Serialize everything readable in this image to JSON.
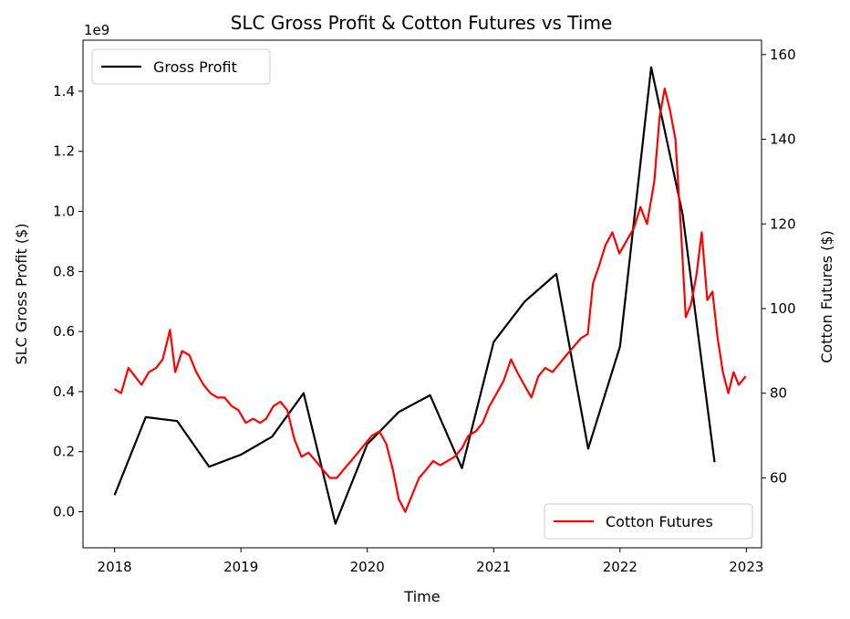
{
  "chart_data": {
    "type": "line",
    "title": "SLC Gross Profit & Cotton Futures vs Time",
    "xlabel": "Time",
    "ylabel_left": "SLC Gross Profit ($)",
    "ylabel_right": "Cotton Futures ($)",
    "left_offset_text": "1e9",
    "x_ticks": [
      "2018",
      "2019",
      "2020",
      "2021",
      "2022",
      "2023"
    ],
    "x_range": [
      2017.75,
      2023.12
    ],
    "left_ylim": [
      -0.12,
      1.57
    ],
    "left_y_ticks": [
      "0.0",
      "0.2",
      "0.4",
      "0.6",
      "0.8",
      "1.0",
      "1.2",
      "1.4"
    ],
    "right_ylim": [
      43.5,
      163.4
    ],
    "right_y_ticks": [
      "60",
      "80",
      "100",
      "120",
      "140",
      "160"
    ],
    "colors": {
      "gross_profit": "#000000",
      "cotton_futures": "#ff0000"
    },
    "legends": [
      {
        "label": "Gross Profit",
        "color": "#000000",
        "placement": "upper left"
      },
      {
        "label": "Cotton Futures",
        "color": "#ff0000",
        "placement": "lower right"
      }
    ],
    "series": [
      {
        "name": "Gross Profit",
        "axis": "left",
        "unit": "1e9",
        "x": [
          "2018-01-01",
          "2018-04-01",
          "2018-07-01",
          "2018-10-01",
          "2019-01-01",
          "2019-04-01",
          "2019-07-01",
          "2019-10-01",
          "2020-01-01",
          "2020-04-01",
          "2020-07-01",
          "2020-10-01",
          "2021-01-01",
          "2021-04-01",
          "2021-07-01",
          "2021-10-01",
          "2022-01-01",
          "2022-04-01",
          "2022-07-01",
          "2022-10-01"
        ],
        "values": [
          0.055,
          0.315,
          0.302,
          0.15,
          0.19,
          0.25,
          0.395,
          -0.04,
          0.225,
          0.332,
          0.388,
          0.145,
          0.565,
          0.7,
          0.792,
          0.21,
          0.55,
          1.48,
          0.99,
          0.165
        ]
      },
      {
        "name": "Cotton Futures",
        "axis": "right",
        "x": [
          "2018-01-01",
          "2018-01-20",
          "2018-02-10",
          "2018-03-01",
          "2018-03-20",
          "2018-04-10",
          "2018-05-01",
          "2018-05-20",
          "2018-06-10",
          "2018-06-25",
          "2018-07-15",
          "2018-08-05",
          "2018-08-25",
          "2018-09-15",
          "2018-10-05",
          "2018-10-25",
          "2018-11-15",
          "2018-12-05",
          "2018-12-25",
          "2019-01-15",
          "2019-02-05",
          "2019-02-25",
          "2019-03-15",
          "2019-04-05",
          "2019-04-25",
          "2019-05-15",
          "2019-06-05",
          "2019-06-25",
          "2019-07-15",
          "2019-08-05",
          "2019-08-25",
          "2019-09-15",
          "2019-10-05",
          "2019-10-25",
          "2019-11-15",
          "2019-12-05",
          "2019-12-25",
          "2020-01-15",
          "2020-02-05",
          "2020-02-25",
          "2020-03-15",
          "2020-04-01",
          "2020-04-20",
          "2020-05-10",
          "2020-05-30",
          "2020-06-20",
          "2020-07-10",
          "2020-07-30",
          "2020-08-20",
          "2020-09-10",
          "2020-10-01",
          "2020-10-20",
          "2020-11-10",
          "2020-11-30",
          "2020-12-20",
          "2021-01-10",
          "2021-01-30",
          "2021-02-20",
          "2021-03-10",
          "2021-03-30",
          "2021-04-20",
          "2021-05-10",
          "2021-05-30",
          "2021-06-20",
          "2021-07-10",
          "2021-07-30",
          "2021-08-20",
          "2021-09-10",
          "2021-09-30",
          "2021-10-15",
          "2021-11-01",
          "2021-11-20",
          "2021-12-10",
          "2021-12-30",
          "2022-01-20",
          "2022-02-10",
          "2022-03-01",
          "2022-03-20",
          "2022-04-10",
          "2022-04-25",
          "2022-05-10",
          "2022-05-25",
          "2022-06-10",
          "2022-06-25",
          "2022-07-10",
          "2022-07-25",
          "2022-08-10",
          "2022-08-25",
          "2022-09-10",
          "2022-09-25",
          "2022-10-10",
          "2022-10-25",
          "2022-11-10",
          "2022-11-25",
          "2022-12-10",
          "2022-12-30"
        ],
        "values": [
          81,
          80,
          86,
          84,
          82,
          85,
          86,
          88,
          95,
          85,
          90,
          89,
          85,
          82,
          80,
          79,
          79,
          77,
          76,
          73,
          74,
          73,
          74,
          77,
          78,
          76,
          69,
          65,
          66,
          64,
          62,
          60,
          60,
          62,
          64,
          66,
          68,
          70,
          71,
          68,
          62,
          55,
          52,
          56,
          60,
          62,
          64,
          63,
          64,
          65,
          67,
          70,
          71,
          73,
          77,
          80,
          83,
          88,
          85,
          82,
          79,
          84,
          86,
          85,
          87,
          89,
          91,
          93,
          94,
          106,
          110,
          115,
          118,
          113,
          116,
          119,
          124,
          120,
          130,
          145,
          152,
          147,
          140,
          120,
          98,
          101,
          108,
          118,
          102,
          104,
          93,
          85,
          80,
          85,
          82,
          84
        ]
      }
    ]
  }
}
